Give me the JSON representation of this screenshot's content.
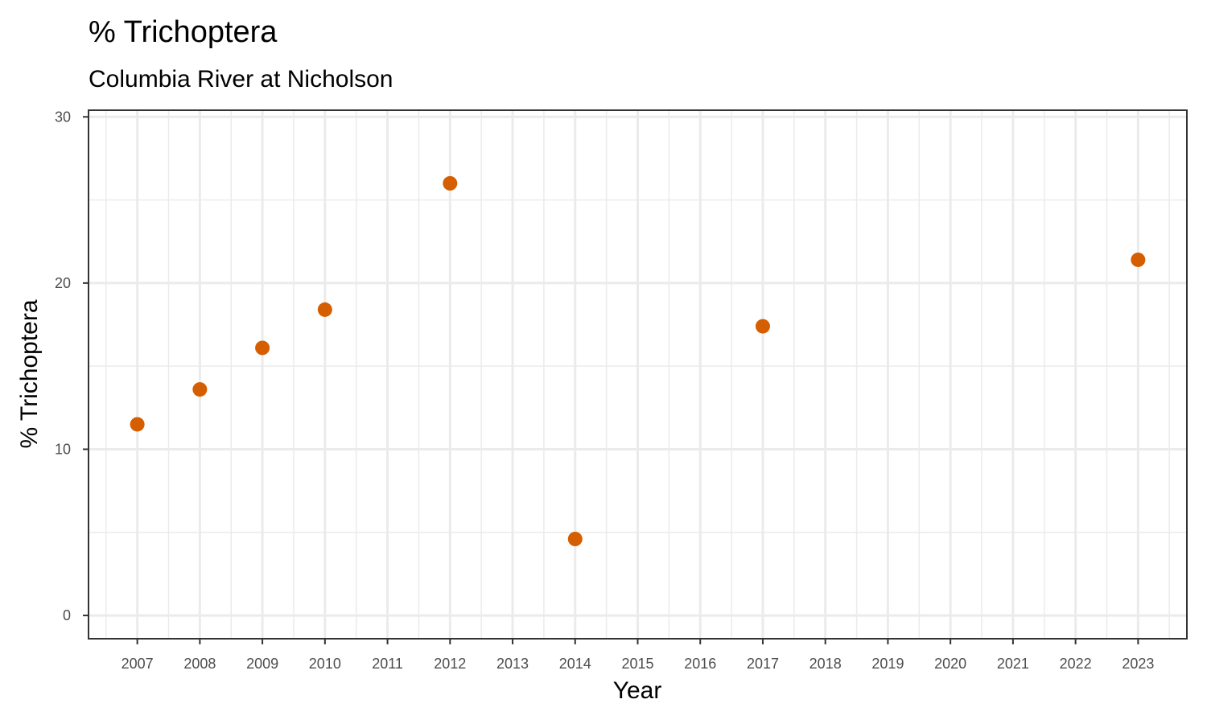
{
  "chart_data": {
    "type": "scatter",
    "title": "% Trichoptera",
    "subtitle": "Columbia River at Nicholson",
    "xlabel": "Year",
    "ylabel": "% Trichoptera",
    "x_ticks": [
      "2007",
      "2008",
      "2009",
      "2010",
      "2011",
      "2012",
      "2013",
      "2014",
      "2015",
      "2016",
      "2017",
      "2018",
      "2019",
      "2020",
      "2021",
      "2022",
      "2023"
    ],
    "y_ticks": [
      "0",
      "10",
      "20",
      "30"
    ],
    "xlim": [
      2006.22,
      2023.78
    ],
    "ylim": [
      -1.4,
      30.4
    ],
    "grid": true,
    "point_color": "#d55e00",
    "points": [
      {
        "x": 2007,
        "y": 11.5
      },
      {
        "x": 2008,
        "y": 13.6
      },
      {
        "x": 2009,
        "y": 16.1
      },
      {
        "x": 2010,
        "y": 18.4
      },
      {
        "x": 2012,
        "y": 26.0
      },
      {
        "x": 2014,
        "y": 4.6
      },
      {
        "x": 2017,
        "y": 17.4
      },
      {
        "x": 2023,
        "y": 21.4
      }
    ]
  }
}
